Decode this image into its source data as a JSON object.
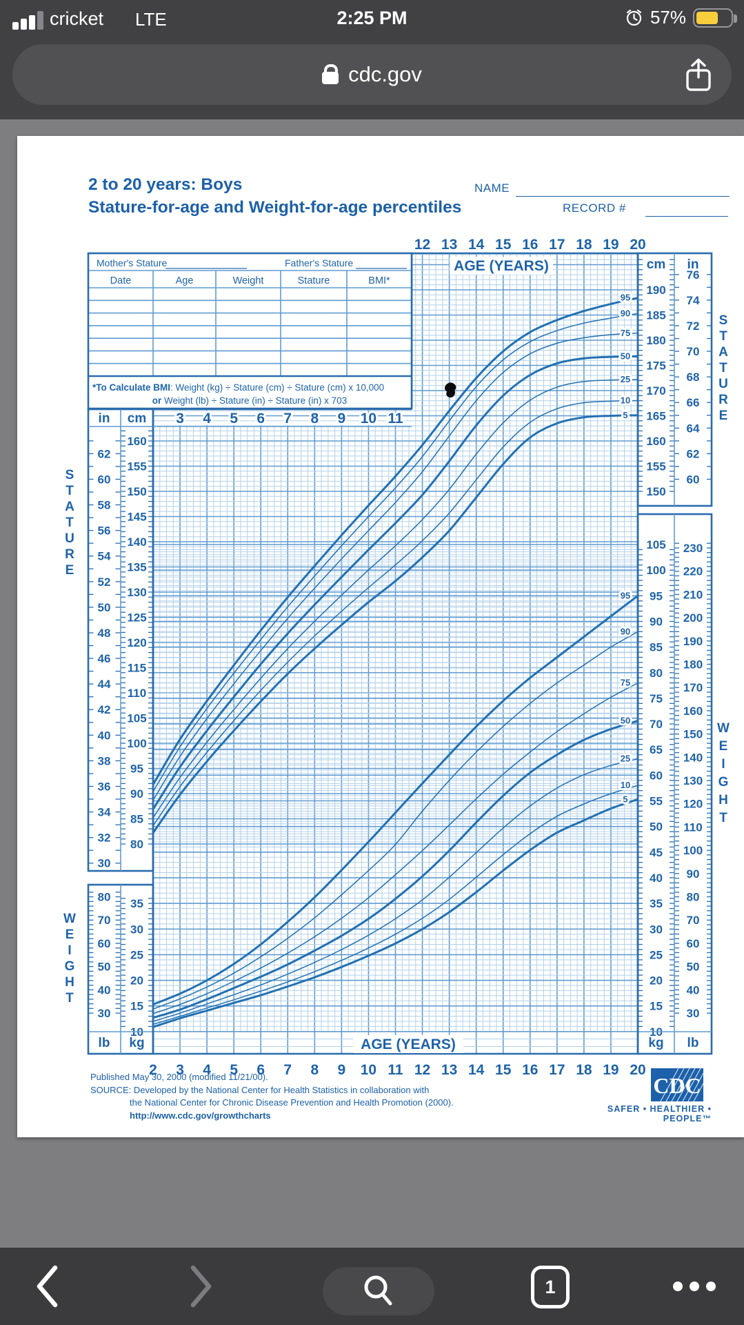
{
  "status_bar": {
    "carrier": "cricket",
    "network": "LTE",
    "time": "2:25 PM",
    "battery_percent": "57%"
  },
  "url_bar": {
    "domain": "cdc.gov"
  },
  "nav": {
    "tab_count": "1"
  },
  "document": {
    "title_line1": "2 to 20 years: Boys",
    "title_line2": "Stature-for-age and Weight-for-age percentiles",
    "name_label": "NAME",
    "record_label": "RECORD #",
    "table": {
      "mothers_label": "Mother's Stature",
      "fathers_label": "Father's Stature",
      "columns": [
        "Date",
        "Age",
        "Weight",
        "Stature",
        "BMI*"
      ],
      "empty_rows": 7
    },
    "bmi_note": {
      "line1_bold": "*To Calculate BMI",
      "line1_rest": ": Weight (kg) ÷ Stature (cm) ÷ Stature (cm) x 10,000",
      "line2_bold": "or",
      "line2_rest": " Weight (lb) ÷ Stature (in) ÷ Stature (in) x 703"
    },
    "footer": {
      "line1": "Published May 30, 2000 (modified 11/21/00).",
      "line2": "SOURCE: Developed by the National Center for Health Statistics in collaboration with",
      "line3": "the National Center for Chronic Disease Prevention and Health Promotion (2000).",
      "line4": "http://www.cdc.gov/growthcharts"
    },
    "cdc_logo_text": "CDC",
    "tagline": "SAFER • HEALTHIER • PEOPLE™"
  },
  "chart_data": {
    "type": "line",
    "title": "2 to 20 years: Boys — Stature-for-age and Weight-for-age percentiles",
    "x_label_top": "AGE (YEARS)",
    "x_label_bottom": "AGE (YEARS)",
    "stature_label": "STATURE",
    "weight_label": "WEIGHT",
    "unit_cm": "cm",
    "unit_in": "in",
    "unit_kg": "kg",
    "unit_lb": "lb",
    "ages": [
      2,
      3,
      4,
      5,
      6,
      7,
      8,
      9,
      10,
      11,
      12,
      13,
      14,
      15,
      16,
      17,
      18,
      19,
      20
    ],
    "top_age_labels": [
      12,
      13,
      14,
      15,
      16,
      17,
      18,
      19,
      20
    ],
    "mid_age_labels": [
      3,
      4,
      5,
      6,
      7,
      8,
      9,
      10,
      11
    ],
    "bottom_age_labels": [
      2,
      3,
      4,
      5,
      6,
      7,
      8,
      9,
      10,
      11,
      12,
      13,
      14,
      15,
      16,
      17,
      18,
      19,
      20
    ],
    "percentile_labels": [
      "95",
      "90",
      "75",
      "50",
      "25",
      "10",
      "5"
    ],
    "scales": {
      "left_in": [
        62,
        60,
        58,
        56,
        54,
        52,
        50,
        48,
        46,
        44,
        42,
        40,
        38,
        36,
        34,
        32,
        30
      ],
      "left_cm": [
        160,
        155,
        150,
        145,
        140,
        135,
        130,
        125,
        120,
        115,
        110,
        105,
        100,
        95,
        90,
        85,
        80
      ],
      "right_cm": [
        190,
        185,
        180,
        175,
        170,
        165,
        160,
        155,
        150
      ],
      "right_in": [
        76,
        74,
        72,
        70,
        68,
        66,
        64,
        62,
        60
      ],
      "right_kg": [
        105,
        100,
        95,
        90,
        85,
        80,
        75,
        70,
        65,
        60,
        55,
        50,
        45,
        40,
        35,
        30,
        25,
        20,
        15,
        10
      ],
      "right_lb": [
        230,
        220,
        210,
        200,
        190,
        180,
        170,
        160,
        150,
        140,
        130,
        120,
        110,
        100,
        90,
        80,
        70,
        60,
        50,
        40,
        30
      ],
      "left_lb": [
        80,
        70,
        60,
        50,
        40,
        30
      ],
      "left_kg": [
        35,
        30,
        25,
        20,
        15,
        10
      ]
    },
    "stature_cm_range": [
      80,
      190
    ],
    "weight_kg_range": [
      10,
      105
    ],
    "stature_series": [
      {
        "pct": "5",
        "values": [
          82.2,
          89.8,
          96.4,
          102.5,
          108.3,
          113.8,
          118.8,
          123.5,
          128.0,
          132.2,
          136.9,
          142.2,
          148.8,
          155.4,
          160.7,
          163.5,
          164.7,
          165.0,
          165.1
        ]
      },
      {
        "pct": "10",
        "values": [
          83.6,
          91.4,
          98.2,
          104.5,
          110.5,
          116.1,
          121.3,
          126.2,
          130.9,
          135.4,
          140.2,
          145.7,
          152.3,
          158.8,
          163.7,
          166.4,
          167.6,
          167.9,
          168.0
        ]
      },
      {
        "pct": "25",
        "values": [
          85.2,
          93.2,
          100.2,
          106.7,
          112.9,
          118.8,
          124.2,
          129.4,
          134.4,
          139.2,
          144.4,
          150.4,
          157.4,
          163.6,
          168.1,
          170.7,
          171.8,
          172.1,
          172.2
        ]
      },
      {
        "pct": "50",
        "values": [
          86.9,
          95.3,
          102.5,
          109.2,
          115.7,
          121.8,
          127.5,
          133.0,
          138.4,
          143.7,
          149.3,
          156.0,
          163.1,
          169.0,
          173.1,
          175.4,
          176.4,
          176.7,
          176.8
        ]
      },
      {
        "pct": "75",
        "values": [
          88.7,
          97.4,
          104.9,
          111.8,
          118.4,
          124.8,
          130.8,
          136.6,
          142.2,
          147.8,
          153.9,
          161.0,
          168.0,
          173.6,
          177.3,
          179.4,
          180.5,
          181.1,
          181.4
        ]
      },
      {
        "pct": "90",
        "values": [
          90.4,
          99.3,
          106.9,
          113.9,
          120.6,
          127.1,
          133.2,
          139.2,
          145.0,
          150.7,
          156.9,
          164.0,
          170.8,
          176.1,
          179.7,
          181.9,
          183.4,
          184.4,
          185.3
        ]
      },
      {
        "pct": "95",
        "values": [
          91.8,
          100.8,
          108.4,
          115.5,
          122.4,
          129.0,
          135.2,
          141.3,
          147.2,
          153.0,
          159.2,
          166.0,
          172.5,
          177.8,
          181.6,
          184.0,
          185.8,
          187.2,
          188.4
        ]
      }
    ],
    "weight_series": [
      {
        "pct": "5",
        "values": [
          10.9,
          12.6,
          14.1,
          15.6,
          17.1,
          18.8,
          20.6,
          22.6,
          24.8,
          27.2,
          30.0,
          33.3,
          37.2,
          41.4,
          45.4,
          48.8,
          51.2,
          53.5,
          55.3
        ]
      },
      {
        "pct": "10",
        "values": [
          11.4,
          13.0,
          14.6,
          16.2,
          17.9,
          19.7,
          21.7,
          23.9,
          26.3,
          29.0,
          32.1,
          35.8,
          40.1,
          44.5,
          48.6,
          52.0,
          54.4,
          56.4,
          58.0
        ]
      },
      {
        "pct": "25",
        "values": [
          12.0,
          13.6,
          15.4,
          17.2,
          19.1,
          21.2,
          23.5,
          26.0,
          28.8,
          32.0,
          35.7,
          40.1,
          44.9,
          49.7,
          54.0,
          57.5,
          60.1,
          61.9,
          63.2
        ]
      },
      {
        "pct": "50",
        "values": [
          12.7,
          14.3,
          16.3,
          18.5,
          20.7,
          23.1,
          25.8,
          28.7,
          32.0,
          35.9,
          40.3,
          45.3,
          50.8,
          56.0,
          60.5,
          64.0,
          66.9,
          69.0,
          70.6
        ]
      },
      {
        "pct": "75",
        "values": [
          13.5,
          15.3,
          17.4,
          19.8,
          22.4,
          25.3,
          28.5,
          32.1,
          36.1,
          40.6,
          45.3,
          50.3,
          55.4,
          60.2,
          64.5,
          68.5,
          72.0,
          75.2,
          78.0
        ]
      },
      {
        "pct": "90",
        "values": [
          14.4,
          16.4,
          18.7,
          21.4,
          24.6,
          28.2,
          32.2,
          36.7,
          41.4,
          46.5,
          53.0,
          59.0,
          64.5,
          69.5,
          74.0,
          78.0,
          81.5,
          85.0,
          88.0
        ]
      },
      {
        "pct": "95",
        "values": [
          15.3,
          17.4,
          20.0,
          23.2,
          27.0,
          31.4,
          36.2,
          41.5,
          47.0,
          52.7,
          58.4,
          64.0,
          69.5,
          74.5,
          79.0,
          83.0,
          87.0,
          91.0,
          95.0
        ]
      }
    ]
  }
}
